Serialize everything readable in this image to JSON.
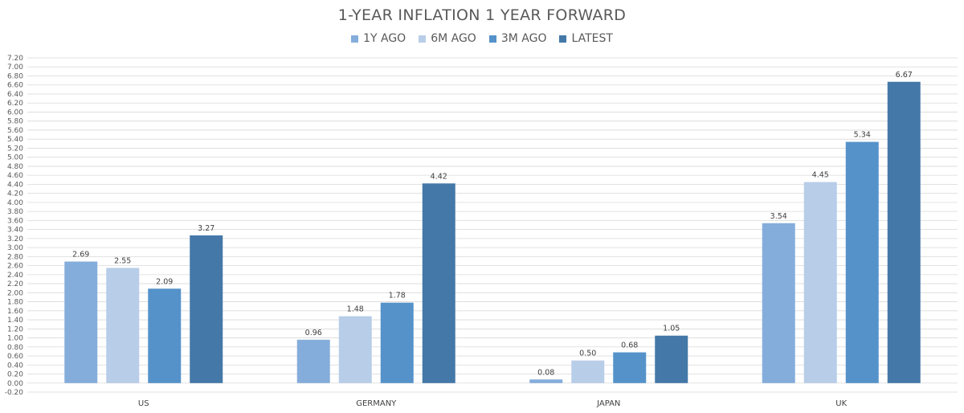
{
  "chart_data": {
    "type": "bar",
    "title": "1-YEAR INFLATION 1 YEAR FORWARD",
    "xlabel": "",
    "ylabel": "",
    "categories": [
      "US",
      "GERMANY",
      "JAPAN",
      "UK"
    ],
    "series": [
      {
        "name": "1Y AGO",
        "color": "#85ADDB",
        "values": [
          2.69,
          0.96,
          0.08,
          3.54
        ]
      },
      {
        "name": "6M AGO",
        "color": "#B8CDE8",
        "values": [
          2.55,
          1.48,
          0.5,
          4.45
        ]
      },
      {
        "name": "3M AGO",
        "color": "#5592C9",
        "values": [
          2.09,
          1.78,
          0.68,
          5.34
        ]
      },
      {
        "name": "LATEST",
        "color": "#4478A8",
        "values": [
          3.27,
          4.42,
          1.05,
          6.67
        ]
      }
    ],
    "ylim": [
      -0.2,
      7.2
    ],
    "ytick_step": 0.2,
    "ytick_decimals": 2,
    "grid": true,
    "legend_position": "top-center",
    "gridline_color": "#D9D9D9"
  }
}
